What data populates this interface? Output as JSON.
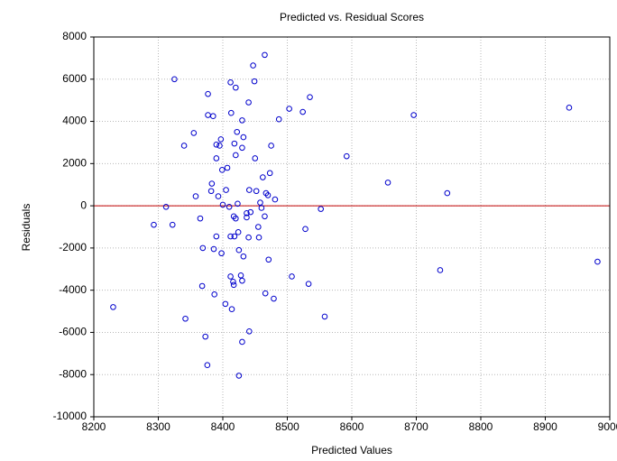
{
  "chart_data": {
    "type": "scatter",
    "title": "Predicted vs. Residual Scores",
    "x_label": "Predicted Values",
    "y_label": "Residuals",
    "xlim": [
      8200,
      9000
    ],
    "xticks": [
      8200,
      8300,
      8400,
      8500,
      8600,
      8700,
      8800,
      8900,
      9000
    ],
    "ylim": [
      -10000,
      8000
    ],
    "yticks": [
      -10000,
      -8000,
      -6000,
      -4000,
      -2000,
      0,
      2000,
      4000,
      6000,
      8000
    ],
    "grid": true,
    "reference_line": {
      "value": 0,
      "color": "#c00000"
    },
    "series": [
      {
        "name": "Residuals",
        "color": "#0000cc",
        "x": [
          8230,
          8293,
          8312,
          8322,
          8325,
          8342,
          8340,
          8355,
          8358,
          8365,
          8368,
          8369,
          8373,
          8376,
          8377,
          8377,
          8383,
          8382,
          8386,
          8387,
          8385,
          8390,
          8390,
          8390,
          8393,
          8395,
          8397,
          8399,
          8398,
          8400,
          8404,
          8405,
          8407,
          8410,
          8412,
          8414,
          8412,
          8412,
          8413,
          8416,
          8417,
          8418,
          8417,
          8418,
          8420,
          8420,
          8420,
          8422,
          8424,
          8425,
          8425,
          8423,
          8428,
          8430,
          8430,
          8430,
          8432,
          8432,
          8430,
          8437,
          8437,
          8440,
          8440,
          8441,
          8441,
          8443,
          8447,
          8449,
          8450,
          8452,
          8455,
          8456,
          8458,
          8460,
          8462,
          8465,
          8465,
          8466,
          8467,
          8470,
          8471,
          8473,
          8475,
          8479,
          8481,
          8487,
          8503,
          8507,
          8524,
          8528,
          8533,
          8535,
          8552,
          8558,
          8592,
          8656,
          8696,
          8737,
          8748,
          8937,
          8981
        ],
        "values": [
          -4800,
          -900,
          -50,
          -900,
          6000,
          -5350,
          2850,
          3450,
          450,
          -600,
          -3800,
          -2000,
          -6200,
          -7550,
          5300,
          4300,
          1050,
          700,
          -2050,
          -4200,
          4250,
          2900,
          2250,
          -1450,
          450,
          2850,
          3150,
          1700,
          -2250,
          50,
          -4650,
          750,
          1800,
          -50,
          -1450,
          -4900,
          -3350,
          5850,
          4400,
          -3600,
          -500,
          -1450,
          -3750,
          2950,
          5600,
          2400,
          -600,
          3500,
          -1250,
          -2100,
          -8050,
          100,
          -3300,
          4050,
          -3550,
          2750,
          3250,
          -2400,
          -6450,
          -350,
          -550,
          4900,
          -1500,
          750,
          -5950,
          -300,
          6650,
          5900,
          2250,
          700,
          -1000,
          -1500,
          150,
          -100,
          1350,
          -500,
          7150,
          -4150,
          600,
          500,
          -2550,
          1550,
          2850,
          -4400,
          300,
          4100,
          4600,
          -3350,
          4450,
          -1100,
          -3700,
          5150,
          -150,
          -5250,
          2350,
          1100,
          4300,
          -3050,
          600,
          4650,
          -2650
        ]
      }
    ]
  }
}
